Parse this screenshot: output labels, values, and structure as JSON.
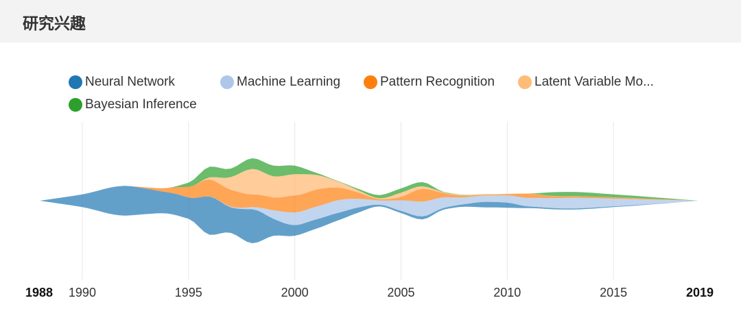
{
  "header": {
    "title": "研究兴趣"
  },
  "chart_data": {
    "type": "area",
    "subtype": "streamgraph",
    "x_range": [
      1988,
      2019
    ],
    "x_ticks": [
      "1990",
      "1995",
      "2000",
      "2005",
      "2010",
      "2015"
    ],
    "x_edge_labels": [
      "1988",
      "2019"
    ],
    "grid": "vertical",
    "legend_position": "top",
    "series": [
      {
        "name": "Neural Network",
        "color": "#1f77b4",
        "points": [
          [
            1988,
            0
          ],
          [
            1990,
            3
          ],
          [
            1992,
            7
          ],
          [
            1993,
            6
          ],
          [
            1994,
            5
          ],
          [
            1995,
            5
          ],
          [
            1996,
            9
          ],
          [
            1997,
            6
          ],
          [
            1998,
            8
          ],
          [
            1999,
            4
          ],
          [
            2000,
            2.5
          ],
          [
            2001,
            2.2
          ],
          [
            2002,
            1.8
          ],
          [
            2003,
            1.2
          ],
          [
            2004,
            0.4
          ],
          [
            2005,
            0.5
          ],
          [
            2006,
            0.7
          ],
          [
            2007,
            0.4
          ],
          [
            2008,
            0.6
          ],
          [
            2009,
            1.3
          ],
          [
            2010,
            1.2
          ],
          [
            2011,
            0.4
          ],
          [
            2012,
            0.3
          ],
          [
            2015,
            0.2
          ],
          [
            2019,
            0
          ]
        ]
      },
      {
        "name": "Machine Learning",
        "color": "#aec7e8",
        "points": [
          [
            1988,
            0
          ],
          [
            1995,
            0
          ],
          [
            1998,
            0.5
          ],
          [
            1999,
            2
          ],
          [
            2000,
            3
          ],
          [
            2001,
            3
          ],
          [
            2002,
            3
          ],
          [
            2003,
            2
          ],
          [
            2004,
            1
          ],
          [
            2005,
            2.5
          ],
          [
            2006,
            3.5
          ],
          [
            2007,
            2.5
          ],
          [
            2008,
            1.6
          ],
          [
            2009,
            1.5
          ],
          [
            2010,
            1.7
          ],
          [
            2011,
            2
          ],
          [
            2012,
            2.3
          ],
          [
            2013,
            2.5
          ],
          [
            2015,
            1.8
          ],
          [
            2019,
            0
          ]
        ]
      },
      {
        "name": "Pattern Recognition",
        "color": "#ff7f0e",
        "points": [
          [
            1988,
            0
          ],
          [
            1992,
            0
          ],
          [
            1993,
            0.3
          ],
          [
            1994,
            1
          ],
          [
            1995,
            2.5
          ],
          [
            1996,
            4
          ],
          [
            1997,
            4
          ],
          [
            1998,
            3
          ],
          [
            1999,
            3
          ],
          [
            2000,
            4
          ],
          [
            2001,
            4
          ],
          [
            2002,
            3
          ],
          [
            2003,
            1.5
          ],
          [
            2004,
            0.3
          ],
          [
            2005,
            0.8
          ],
          [
            2006,
            3
          ],
          [
            2007,
            1
          ],
          [
            2008,
            0.4
          ],
          [
            2009,
            0.2
          ],
          [
            2010,
            0.3
          ],
          [
            2011,
            1
          ],
          [
            2012,
            0.5
          ],
          [
            2015,
            0.3
          ],
          [
            2019,
            0
          ]
        ]
      },
      {
        "name": "Latent Variable Models",
        "color": "#ffbb78",
        "points": [
          [
            1988,
            0
          ],
          [
            1995,
            0
          ],
          [
            1996,
            0.5
          ],
          [
            1997,
            3
          ],
          [
            1998,
            6
          ],
          [
            1999,
            5
          ],
          [
            2000,
            5
          ],
          [
            2001,
            3.5
          ],
          [
            2002,
            1.5
          ],
          [
            2003,
            0.5
          ],
          [
            2004,
            0.2
          ],
          [
            2005,
            1
          ],
          [
            2006,
            0.6
          ],
          [
            2007,
            0.2
          ],
          [
            2019,
            0
          ]
        ]
      },
      {
        "name": "Bayesian Inference",
        "color": "#2ca02c",
        "points": [
          [
            1988,
            0
          ],
          [
            1994,
            0
          ],
          [
            1995,
            1
          ],
          [
            1996,
            2.5
          ],
          [
            1997,
            2
          ],
          [
            1998,
            2.5
          ],
          [
            1999,
            2.5
          ],
          [
            2000,
            2
          ],
          [
            2001,
            0.5
          ],
          [
            2002,
            0.1
          ],
          [
            2005,
            1
          ],
          [
            2006,
            1
          ],
          [
            2007,
            0.1
          ],
          [
            2011,
            0
          ],
          [
            2012,
            0.8
          ],
          [
            2013,
            1
          ],
          [
            2015,
            0.7
          ],
          [
            2019,
            0
          ]
        ]
      }
    ]
  }
}
